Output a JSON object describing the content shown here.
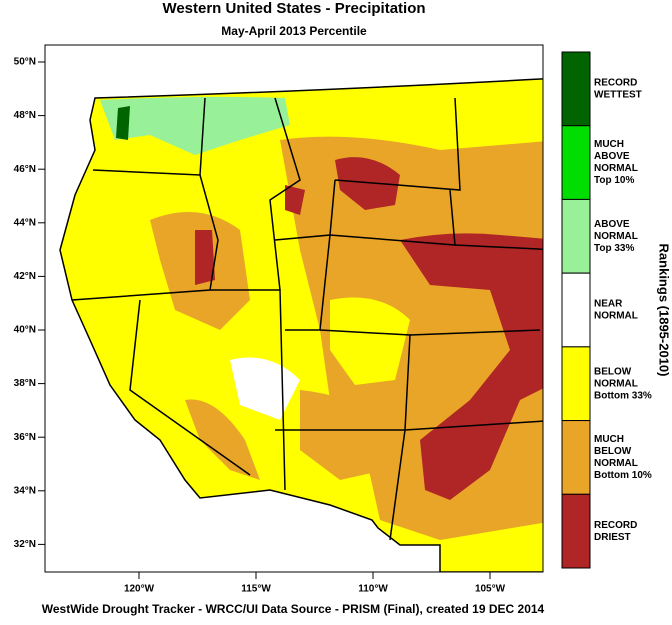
{
  "title": "Western United States - Precipitation",
  "subtitle": "May-April 2013 Percentile",
  "lat_labels": [
    "50°N",
    "48°N",
    "46°N",
    "44°N",
    "42°N",
    "40°N",
    "38°N",
    "36°N",
    "34°N",
    "32°N"
  ],
  "lon_labels": [
    "120°W",
    "115°W",
    "110°W",
    "105°W"
  ],
  "legend": {
    "title": "Rankings (1895-2010)",
    "items": [
      {
        "lines": [
          "RECORD",
          "WETTEST"
        ],
        "color": "#006400"
      },
      {
        "lines": [
          "MUCH",
          "ABOVE",
          "NORMAL",
          "Top 10%"
        ],
        "color": "#00dd00"
      },
      {
        "lines": [
          "ABOVE",
          "NORMAL",
          "Top 33%"
        ],
        "color": "#98f098"
      },
      {
        "lines": [
          "NEAR",
          "NORMAL"
        ],
        "color": "#ffffff"
      },
      {
        "lines": [
          "BELOW",
          "NORMAL",
          "Bottom 33%"
        ],
        "color": "#ffff00"
      },
      {
        "lines": [
          "MUCH",
          "BELOW",
          "NORMAL",
          "Bottom 10%"
        ],
        "color": "#e8a528"
      },
      {
        "lines": [
          "RECORD",
          "DRIEST"
        ],
        "color": "#b02525"
      }
    ]
  },
  "footer": "WestWide Drought Tracker - WRCC/UI  Data Source - PRISM (Final), created 19 DEC 2014"
}
